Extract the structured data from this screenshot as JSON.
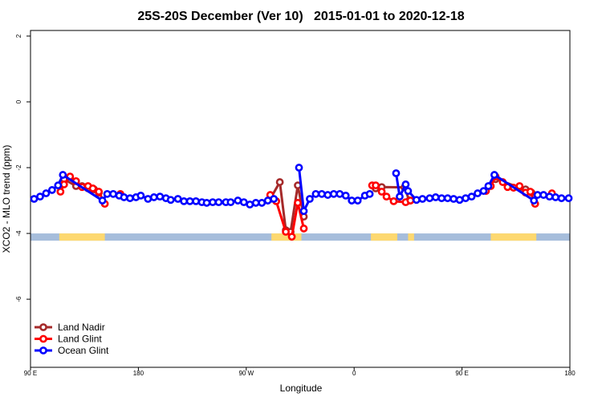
{
  "chart_data": {
    "type": "line",
    "title": "25S-20S December (Ver 10)   2015-01-01 to 2020-12-18",
    "x_label": "Longitude",
    "y_label": "XCO2 - MLO trend (ppm)",
    "xlim": [
      90,
      540
    ],
    "ylim": [
      -8.07,
      2.17
    ],
    "xticks": [
      {
        "value": 90,
        "label": "90 E"
      },
      180,
      {
        "value": 270,
        "label": "90 W"
      },
      {
        "value": 360,
        "label": "0"
      },
      {
        "value": 450,
        "label": "90 E"
      },
      {
        "value": 540,
        "label": "180"
      }
    ],
    "yticks": [
      -6,
      -4,
      -2,
      0,
      2
    ],
    "legend": "bottom-left",
    "surface_band": {
      "y": [
        -4.22,
        -4.0
      ],
      "ocean_color": "#a6bddb",
      "land_color": "#fdd870",
      "land": [
        [
          114,
          152
        ],
        [
          291,
          316
        ],
        [
          374,
          396
        ],
        [
          405,
          410
        ],
        [
          474,
          512
        ]
      ]
    },
    "series": [
      {
        "name": "Land Nadir",
        "color": "#a52a2a",
        "x": [
          118,
          128,
          133,
          138,
          143,
          147,
          200,
          290,
          298,
          303,
          307,
          313,
          318,
          340,
          378,
          383,
          402,
          406,
          440,
          478,
          498,
          503,
          508
        ],
        "values": [
          -2.35,
          -2.56,
          -2.56,
          -2.63,
          -2.66,
          -2.76,
          null,
          -2.95,
          -2.44,
          -3.9,
          -3.95,
          -2.54,
          -3.49,
          null,
          -2.63,
          -2.59,
          -2.6,
          -3.0,
          null,
          -2.35,
          -2.6,
          -2.66,
          -2.76
        ]
      },
      {
        "name": "Land Glint",
        "color": "#ff0000",
        "x": [
          115,
          118,
          123,
          128,
          133,
          138,
          142,
          147,
          152,
          158,
          165,
          200,
          290,
          295,
          303,
          308,
          313,
          318,
          340,
          375,
          378,
          383,
          387,
          393,
          403,
          407,
          440,
          470,
          474,
          478,
          484,
          488,
          493,
          498,
          503,
          507,
          511,
          520,
          525
        ],
        "values": [
          -2.73,
          -2.51,
          -2.27,
          -2.41,
          -2.59,
          -2.56,
          -2.63,
          -2.73,
          -3.1,
          null,
          -2.8,
          null,
          -2.83,
          -3.02,
          -3.95,
          -4.1,
          -3.07,
          -3.85,
          null,
          -2.54,
          -2.54,
          -2.73,
          -2.88,
          -3.02,
          -3.05,
          -3.0,
          null,
          -2.71,
          -2.56,
          -2.27,
          -2.44,
          -2.59,
          -2.61,
          -2.56,
          -2.76,
          -2.73,
          -3.1,
          null,
          -2.78
        ]
      },
      {
        "name": "Ocean Glint",
        "color": "#0000ff",
        "x": [
          93,
          98,
          103,
          108,
          113,
          117,
          150,
          154,
          159,
          164,
          168,
          173,
          178,
          182,
          188,
          193,
          198,
          203,
          207,
          213,
          218,
          223,
          228,
          233,
          237,
          242,
          247,
          253,
          257,
          263,
          268,
          273,
          278,
          283,
          288,
          293,
          303,
          314,
          318,
          323,
          328,
          333,
          338,
          343,
          348,
          353,
          358,
          363,
          369,
          373,
          384,
          395,
          398,
          403,
          405,
          412,
          417,
          423,
          428,
          433,
          438,
          443,
          448,
          453,
          458,
          463,
          468,
          472,
          477,
          510,
          513,
          518,
          523,
          528,
          533,
          539
        ],
        "values": [
          -2.95,
          -2.88,
          -2.78,
          -2.68,
          -2.54,
          -2.22,
          -3.0,
          -2.8,
          -2.8,
          -2.85,
          -2.9,
          -2.93,
          -2.9,
          -2.85,
          -2.95,
          -2.9,
          -2.88,
          -2.93,
          -2.98,
          -2.95,
          -3.02,
          -3.02,
          -3.02,
          -3.05,
          -3.07,
          -3.05,
          -3.05,
          -3.05,
          -3.05,
          -3.0,
          -3.05,
          -3.12,
          -3.07,
          -3.07,
          -3.0,
          -2.95,
          null,
          -2.0,
          -3.32,
          -2.95,
          -2.8,
          -2.8,
          -2.83,
          -2.8,
          -2.8,
          -2.85,
          -3.0,
          -3.0,
          -2.85,
          -2.8,
          null,
          -2.17,
          -2.88,
          -2.51,
          -2.71,
          -2.98,
          -2.95,
          -2.93,
          -2.9,
          -2.93,
          -2.93,
          -2.95,
          -2.98,
          -2.93,
          -2.88,
          -2.78,
          -2.71,
          -2.56,
          -2.22,
          -3.0,
          -2.83,
          -2.83,
          -2.88,
          -2.9,
          -2.93,
          -2.93
        ]
      }
    ]
  }
}
